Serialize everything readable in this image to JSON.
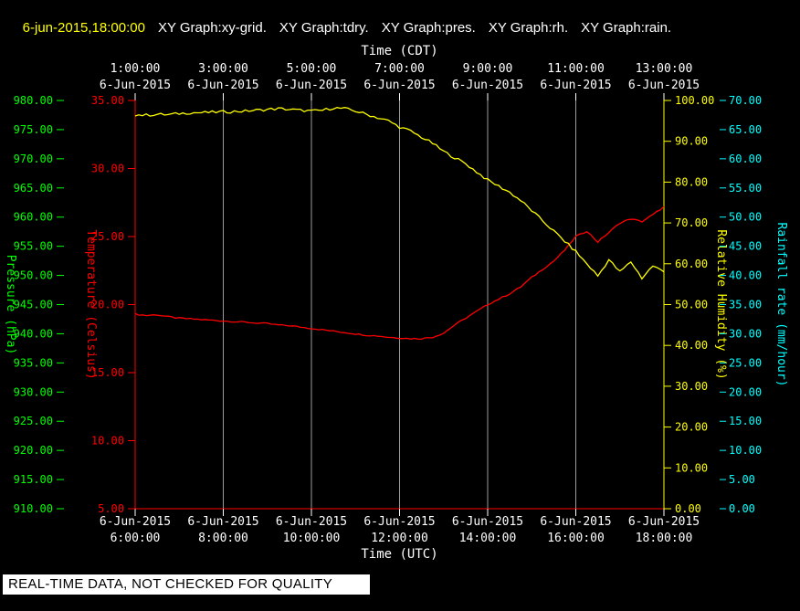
{
  "header": {
    "timestamp": "6-jun-2015,18:00:00",
    "graphs": [
      "XY Graph:xy-grid.",
      "XY Graph:tdry.",
      "XY Graph:pres.",
      "XY Graph:rh.",
      "XY Graph:rain."
    ]
  },
  "footer": {
    "notice": "REAL-TIME DATA, NOT CHECKED FOR QUALITY"
  },
  "chart_data": {
    "type": "line",
    "background_color": "#000000",
    "top_axis": {
      "label": "Time (CDT)",
      "ticks": [
        "1:00:00",
        "3:00:00",
        "5:00:00",
        "7:00:00",
        "9:00:00",
        "11:00:00",
        "13:00:00"
      ],
      "tick_dates": [
        "6-Jun-2015",
        "6-Jun-2015",
        "6-Jun-2015",
        "6-Jun-2015",
        "6-Jun-2015",
        "6-Jun-2015",
        "6-Jun-2015"
      ]
    },
    "bottom_axis": {
      "label": "Time (UTC)",
      "range_hours": [
        6,
        18
      ],
      "ticks": [
        "6:00:00",
        "8:00:00",
        "10:00:00",
        "12:00:00",
        "14:00:00",
        "16:00:00",
        "18:00:00"
      ],
      "tick_dates": [
        "6-Jun-2015",
        "6-Jun-2015",
        "6-Jun-2015",
        "6-Jun-2015",
        "6-Jun-2015",
        "6-Jun-2015",
        "6-Jun-2015"
      ]
    },
    "left_axes": [
      {
        "name": "pressure",
        "label": "Pressure (hPa)",
        "color": "#00ff00",
        "min": 910,
        "max": 980,
        "step": 5
      },
      {
        "name": "temperature",
        "label": "Temperature (Celsius)",
        "color": "#ff0000",
        "min": 5,
        "max": 35,
        "step": 5
      }
    ],
    "right_axes": [
      {
        "name": "humidity",
        "label": "Relative Humidity (%)",
        "color": "#ffff00",
        "min": 0,
        "max": 100,
        "step": 10
      },
      {
        "name": "rain",
        "label": "Rainfall rate (mm/hour)",
        "color": "#00ffff",
        "min": 0,
        "max": 70,
        "step": 5
      }
    ],
    "grid": {
      "vertical_lines_hours": [
        8,
        10,
        12,
        14,
        16
      ],
      "color": "#9b9b9b"
    },
    "series": [
      {
        "name": "tdry",
        "axis": "temperature",
        "color": "#ff0000",
        "x_start": 6,
        "x_step": 0.25,
        "jitter": 0.05,
        "values": [
          19.3,
          19.2,
          19.25,
          19.1,
          19.0,
          18.95,
          18.9,
          18.85,
          18.8,
          18.75,
          18.7,
          18.65,
          18.6,
          18.5,
          18.45,
          18.35,
          18.25,
          18.15,
          18.05,
          17.95,
          17.85,
          17.75,
          17.7,
          17.6,
          17.55,
          17.5,
          17.5,
          17.6,
          17.9,
          18.5,
          19.0,
          19.5,
          20.0,
          20.4,
          20.8,
          21.3,
          22.0,
          22.6,
          23.2,
          24.0,
          25.0,
          25.4,
          24.6,
          25.3,
          26.0,
          26.3,
          26.1,
          26.6,
          27.2
        ]
      },
      {
        "name": "rh",
        "axis": "humidity",
        "color": "#ffff00",
        "x_start": 6,
        "x_step": 0.25,
        "jitter": 0.35,
        "values": [
          96.5,
          96.4,
          96.6,
          96.5,
          96.8,
          97.0,
          97.0,
          97.1,
          97.2,
          97.3,
          97.4,
          97.6,
          97.8,
          98.0,
          97.8,
          97.6,
          97.4,
          97.6,
          98.2,
          98.0,
          97.4,
          96.6,
          95.8,
          95.0,
          93.5,
          92.5,
          91.0,
          89.5,
          87.5,
          86.0,
          84.5,
          82.5,
          80.5,
          79.0,
          77.5,
          75.5,
          73.0,
          70.5,
          68.0,
          65.5,
          63.0,
          60.0,
          57.0,
          61.0,
          58.0,
          60.5,
          56.5,
          59.5,
          58.0
        ]
      },
      {
        "name": "pres",
        "axis": "pressure",
        "color": "#00ff00",
        "trace_visible": false,
        "values": []
      },
      {
        "name": "rain",
        "axis": "rain",
        "color": "#00ffff",
        "trace_visible": false,
        "values": []
      }
    ]
  }
}
